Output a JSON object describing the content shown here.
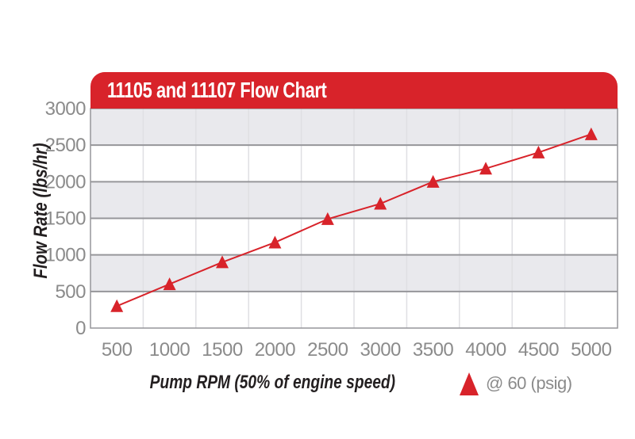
{
  "chart_data": {
    "type": "line",
    "title": "11105 and 11107 Flow Chart",
    "xlabel": "Pump RPM (50% of engine speed)",
    "ylabel": "Flow Rate (lbs/hr)",
    "x": [
      500,
      1000,
      1500,
      2000,
      2500,
      3000,
      3500,
      4000,
      4500,
      5000
    ],
    "x_tick_labels": [
      "500",
      "1000",
      "1500",
      "2000",
      "2500",
      "3000",
      "3500",
      "4000",
      "4500",
      "5000"
    ],
    "series": [
      {
        "name": "@ 60 (psig)",
        "marker": "triangle-up",
        "color": "#d8232a",
        "values": [
          300,
          600,
          900,
          1170,
          1490,
          1700,
          2000,
          2180,
          2400,
          2650
        ]
      }
    ],
    "ylim": [
      0,
      3000
    ],
    "y_ticks": [
      0,
      500,
      1000,
      1500,
      2000,
      2500,
      3000
    ],
    "grid": {
      "horizontal": true,
      "vertical": true,
      "band_fill": "alternating-gray-white"
    },
    "legend_position": "bottom-right"
  },
  "colors": {
    "accent_red": "#d8232a",
    "title_text": "#ffffff",
    "band_gray": "#e9e9ed",
    "band_white": "#ffffff",
    "grid_major": "#96969a",
    "grid_minor": "#dfdfe3",
    "tick_label": "#8b8b8b",
    "axis_title": "#231f20",
    "background": "#ffffff"
  }
}
